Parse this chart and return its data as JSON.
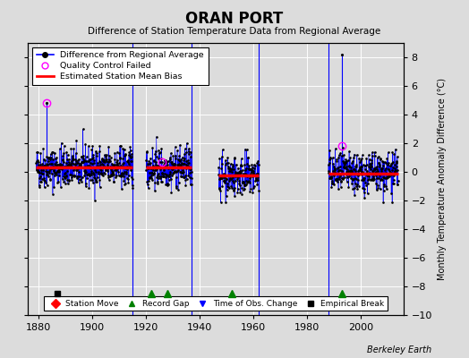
{
  "title": "ORAN PORT",
  "subtitle": "Difference of Station Temperature Data from Regional Average",
  "ylabel": "Monthly Temperature Anomaly Difference (°C)",
  "credit": "Berkeley Earth",
  "xlim": [
    1876,
    2016
  ],
  "ylim": [
    -10,
    9
  ],
  "yticks": [
    -10,
    -8,
    -6,
    -4,
    -2,
    0,
    2,
    4,
    6,
    8
  ],
  "xticks": [
    1880,
    1900,
    1920,
    1940,
    1960,
    1980,
    2000
  ],
  "bg_color": "#dcdcdc",
  "plot_bg_color": "#dcdcdc",
  "segments": [
    {
      "start": 1879,
      "end": 1915,
      "bias": 0.3
    },
    {
      "start": 1920,
      "end": 1937,
      "bias": 0.3
    },
    {
      "start": 1947,
      "end": 1962,
      "bias": -0.25
    },
    {
      "start": 1988,
      "end": 2014,
      "bias": -0.1
    }
  ],
  "vertical_lines": [
    1915,
    1937,
    1962,
    1988
  ],
  "record_gaps": [
    1922,
    1928,
    1952,
    1993
  ],
  "empirical_breaks": [
    1887
  ],
  "qc_failed": [
    {
      "year": 1883,
      "value": 4.8
    },
    {
      "year": 1926,
      "value": 0.7
    },
    {
      "year": 1993,
      "value": 1.8
    }
  ],
  "spikes": [
    {
      "year": 1883,
      "value": 4.8
    },
    {
      "year": 1993,
      "value": 8.2
    }
  ],
  "seed": 42
}
